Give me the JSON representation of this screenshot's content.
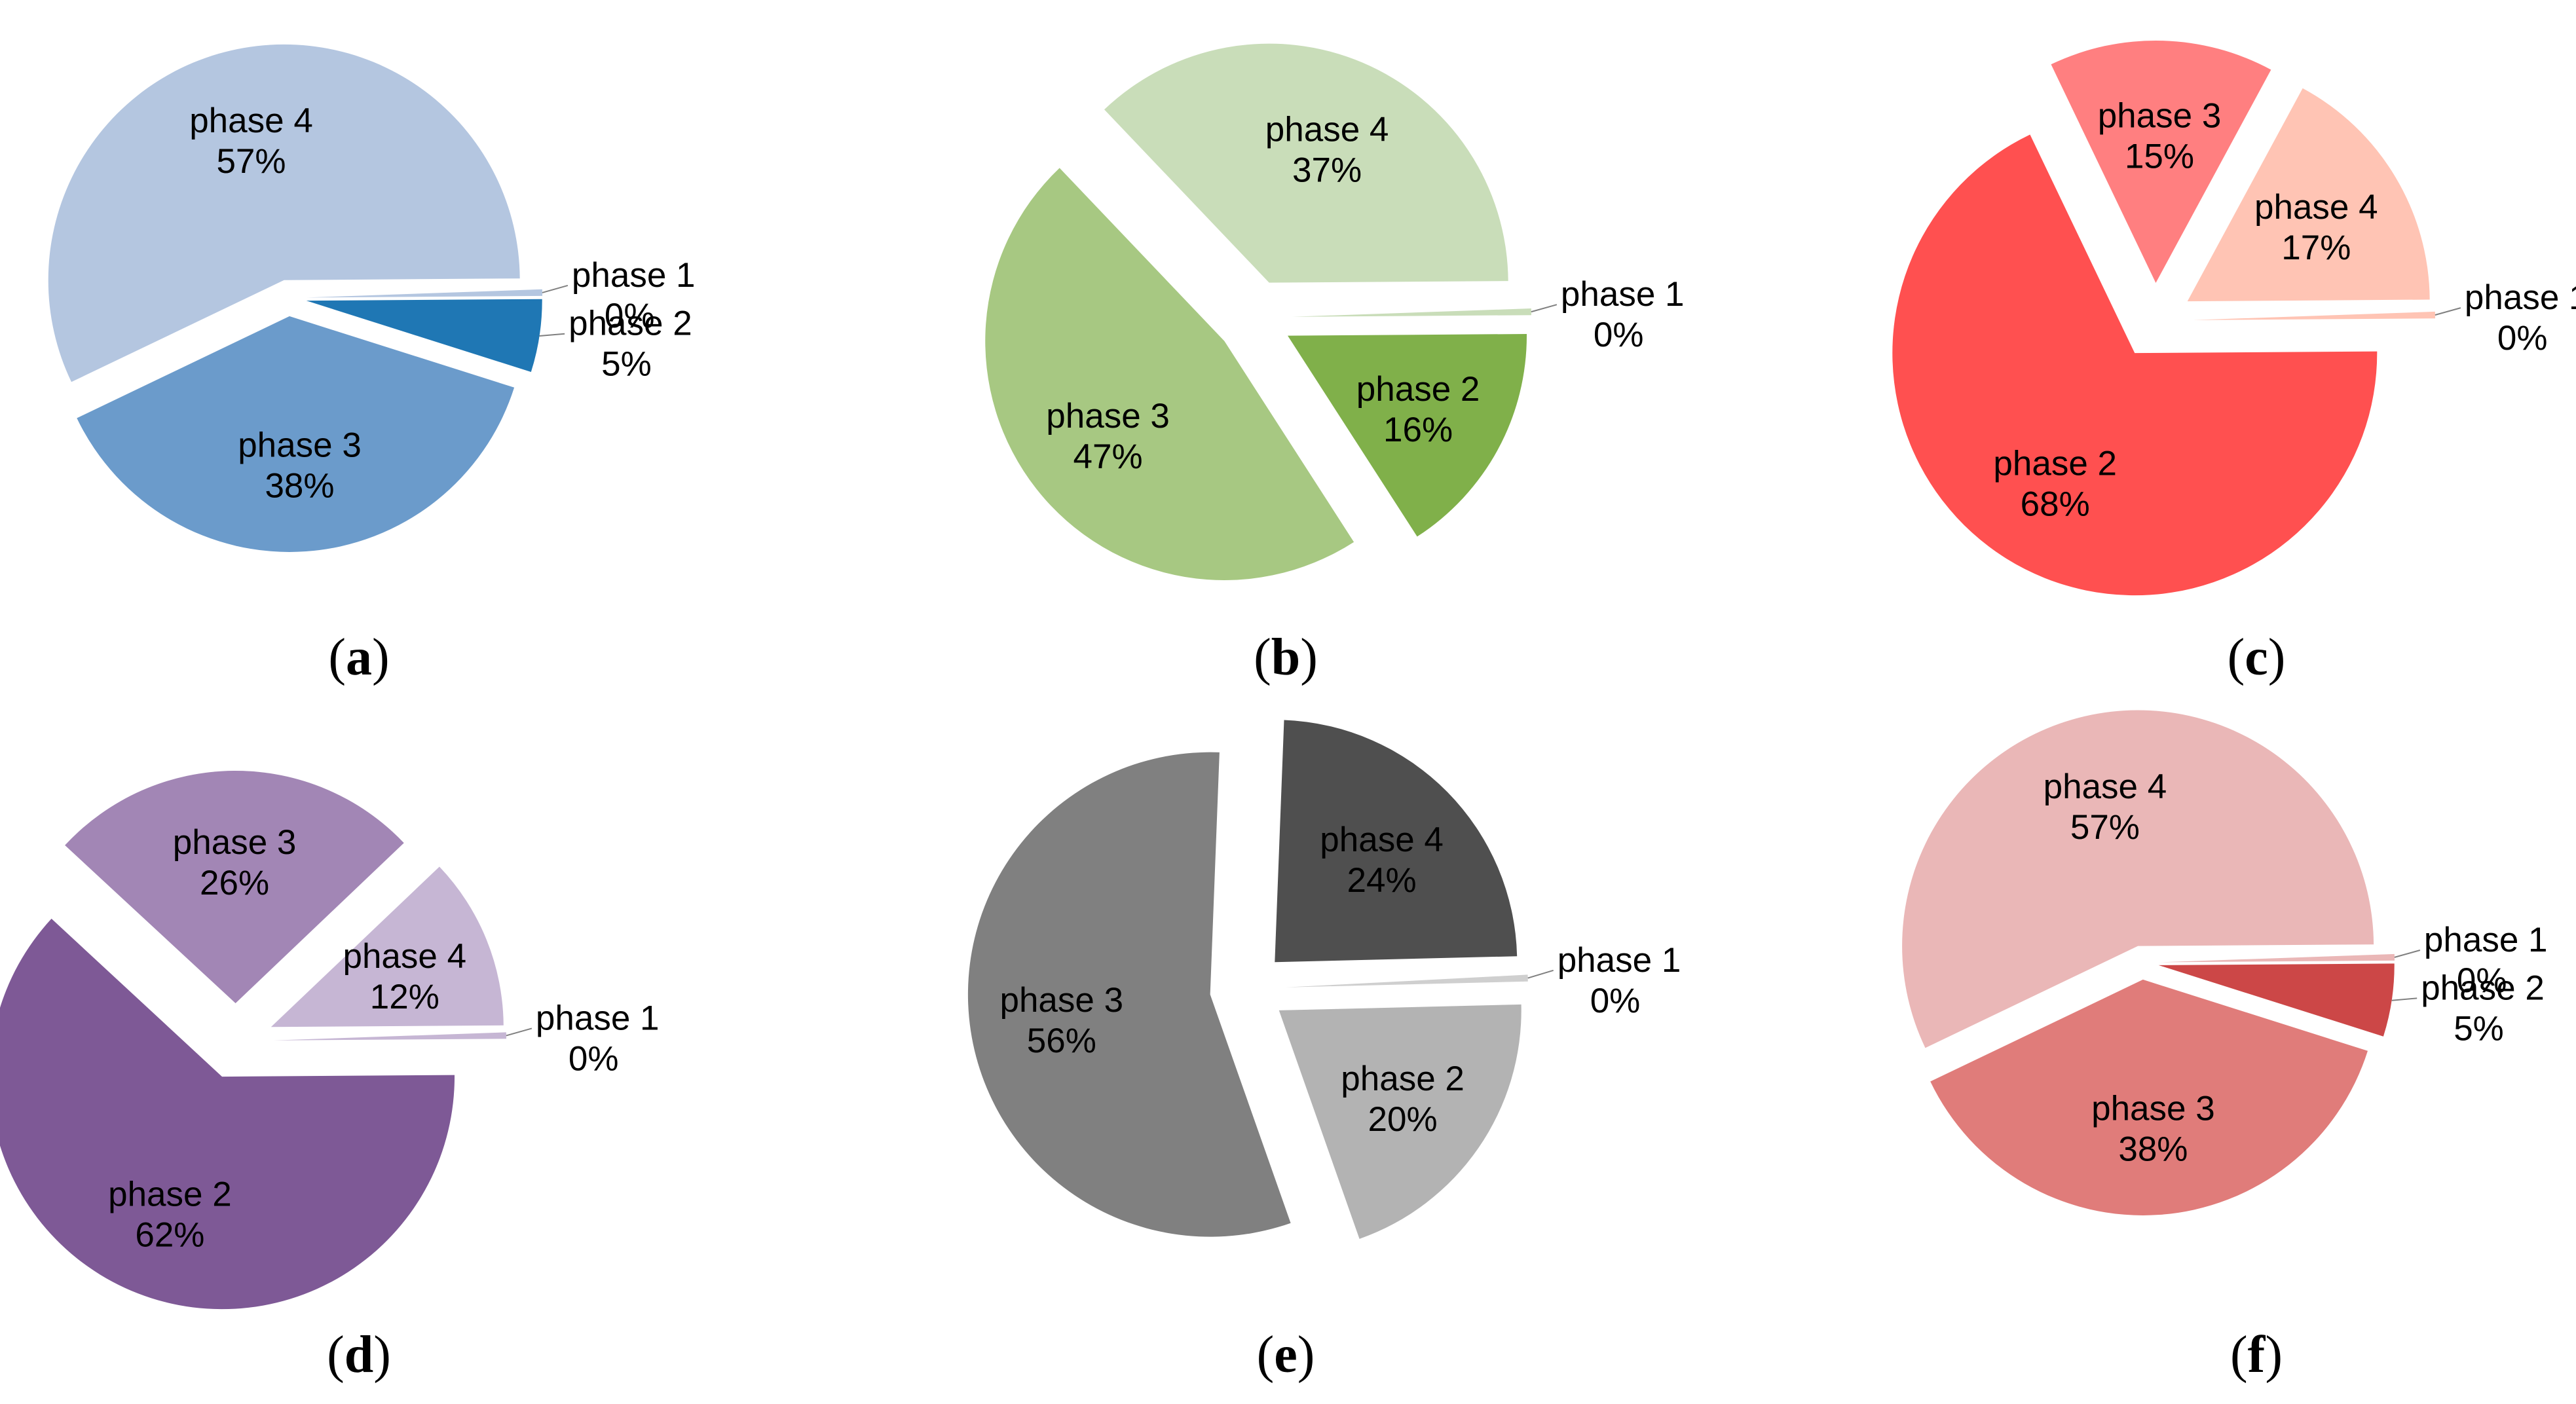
{
  "chart_data": [
    {
      "type": "pie",
      "panel": "(a)",
      "panel_letter": "a",
      "categories": [
        "phase 1",
        "phase 2",
        "phase 3",
        "phase 4"
      ],
      "values": [
        0,
        5,
        38,
        57
      ],
      "value_labels": [
        "0%",
        "5%",
        "38%",
        "57%"
      ],
      "colors": [
        "#b4c6e0",
        "#1f77b4",
        "#6b9bcb",
        "#b4c6e0"
      ],
      "exploded": true
    },
    {
      "type": "pie",
      "panel": "(b)",
      "panel_letter": "b",
      "categories": [
        "phase 1",
        "phase 2",
        "phase 3",
        "phase 4"
      ],
      "values": [
        0,
        16,
        47,
        37
      ],
      "value_labels": [
        "0%",
        "16%",
        "47%",
        "37%"
      ],
      "colors": [
        "#c9ddb9",
        "#80b04a",
        "#a7c882",
        "#c9ddb9"
      ],
      "exploded": true
    },
    {
      "type": "pie",
      "panel": "(c)",
      "panel_letter": "c",
      "categories": [
        "phase 1",
        "phase 2",
        "phase 3",
        "phase 4"
      ],
      "values": [
        0,
        68,
        15,
        17
      ],
      "value_labels": [
        "0%",
        "68%",
        "15%",
        "17%"
      ],
      "colors": [
        "#ffc4b4",
        "#ff5050",
        "#ff7f80",
        "#ffc4b4"
      ],
      "exploded": true
    },
    {
      "type": "pie",
      "panel": "(d)",
      "panel_letter": "d",
      "categories": [
        "phase 1",
        "phase 2",
        "phase 3",
        "phase 4"
      ],
      "values": [
        0,
        62,
        26,
        12
      ],
      "value_labels": [
        "0%",
        "62%",
        "26%",
        "12%"
      ],
      "colors": [
        "#c6b6d4",
        "#7e5996",
        "#a286b5",
        "#c6b6d4"
      ],
      "exploded": true
    },
    {
      "type": "pie",
      "panel": "(e)",
      "panel_letter": "e",
      "categories": [
        "phase 1",
        "phase 2",
        "phase 3",
        "phase 4"
      ],
      "values": [
        0,
        20,
        56,
        24
      ],
      "value_labels": [
        "0%",
        "20%",
        "56%",
        "24%"
      ],
      "colors": [
        "#cfcfcf",
        "#b3b3b3",
        "#808080",
        "#4f4f4f"
      ],
      "exploded": true
    },
    {
      "type": "pie",
      "panel": "(f)",
      "panel_letter": "f",
      "categories": [
        "phase 1",
        "phase 2",
        "phase 3",
        "phase 4"
      ],
      "values": [
        0,
        5,
        38,
        57
      ],
      "value_labels": [
        "0%",
        "5%",
        "38%",
        "57%"
      ],
      "colors": [
        "#eab7b7",
        "#cc4747",
        "#e07c7a",
        "#eab7b7"
      ],
      "exploded": true
    }
  ]
}
